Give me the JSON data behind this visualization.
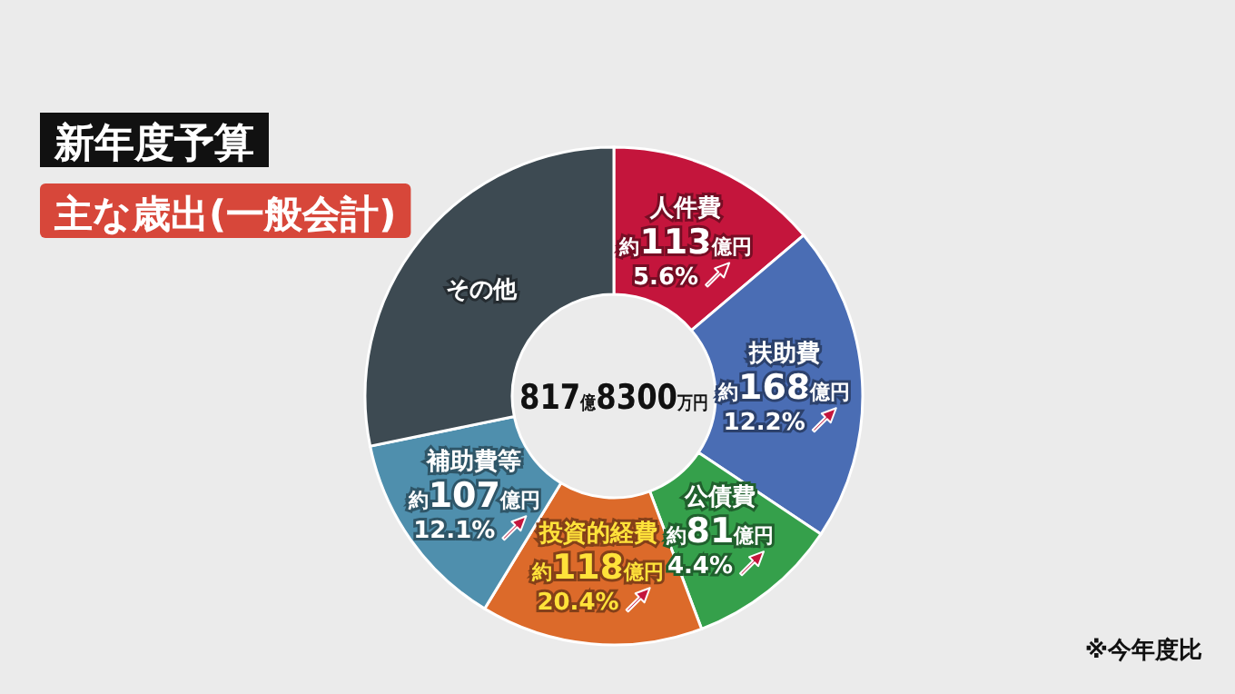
{
  "chart_data": {
    "type": "donut",
    "title": "新年度予算",
    "subtitle": "主な歳出(一般会計)",
    "categories": [
      "人件費",
      "扶助費",
      "公債費",
      "投資的経費",
      "補助費等",
      "その他"
    ],
    "values": [
      113,
      168,
      81,
      118,
      107,
      230.83
    ],
    "colors": [
      "#c4153c",
      "#4a6db4",
      "#35a04b",
      "#dc6a2a",
      "#4f8fad",
      "#3d4a52"
    ],
    "value_labels": [
      "約113億円",
      "約168億円",
      "約81億円",
      "約118億円",
      "約107億円",
      null
    ],
    "annotations": [
      {
        "text": "5.6%",
        "x": "人件費"
      },
      {
        "text": "12.2%",
        "x": "扶助費"
      },
      {
        "text": "4.4%",
        "x": "公債費"
      },
      {
        "text": "20.4%",
        "x": "投資的経費"
      },
      {
        "text": "12.1%",
        "x": "補助費等"
      },
      "817億8300万円",
      "※今年度比"
    ]
  }
}
